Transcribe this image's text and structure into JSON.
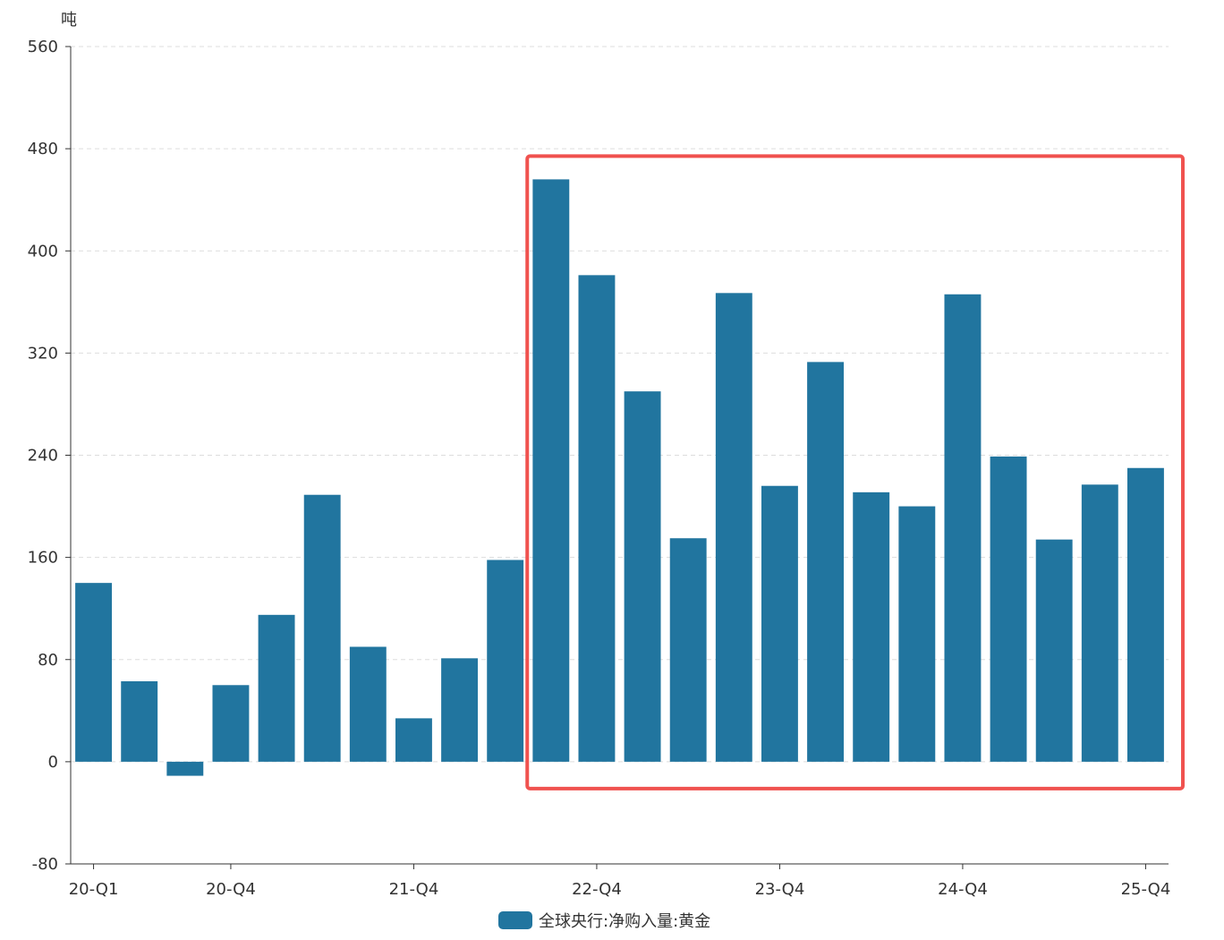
{
  "chart_data": {
    "type": "bar",
    "title": "",
    "ylabel": "吨",
    "xlabel": "",
    "ylim": [
      -80,
      560
    ],
    "yticks": [
      -80,
      0,
      80,
      160,
      240,
      320,
      400,
      480,
      560
    ],
    "grid": true,
    "categories": [
      "20-Q1",
      "20-Q2",
      "20-Q3",
      "20-Q4",
      "21-Q1",
      "21-Q2",
      "21-Q3",
      "21-Q4",
      "22-Q1",
      "22-Q2",
      "22-Q3",
      "22-Q4",
      "23-Q1",
      "23-Q2",
      "23-Q3",
      "23-Q4",
      "24-Q1",
      "24-Q2",
      "24-Q3",
      "24-Q4",
      "25-Q1",
      "25-Q2",
      "25-Q3",
      "25-Q4"
    ],
    "xtick_labels": [
      "20-Q1",
      "20-Q4",
      "21-Q4",
      "22-Q4",
      "23-Q4",
      "24-Q4",
      "25-Q4"
    ],
    "series": [
      {
        "name": "全球央行:净购入量:黄金",
        "color": "#21759f",
        "values": [
          140,
          63,
          -11,
          60,
          115,
          209,
          90,
          34,
          81,
          158,
          456,
          381,
          290,
          175,
          367,
          216,
          313,
          211,
          200,
          366,
          239,
          174,
          217,
          230
        ]
      }
    ],
    "legend": "bottom",
    "highlight": {
      "from": "22-Q3",
      "to": "25-Q4",
      "color": "#f0524f"
    }
  }
}
